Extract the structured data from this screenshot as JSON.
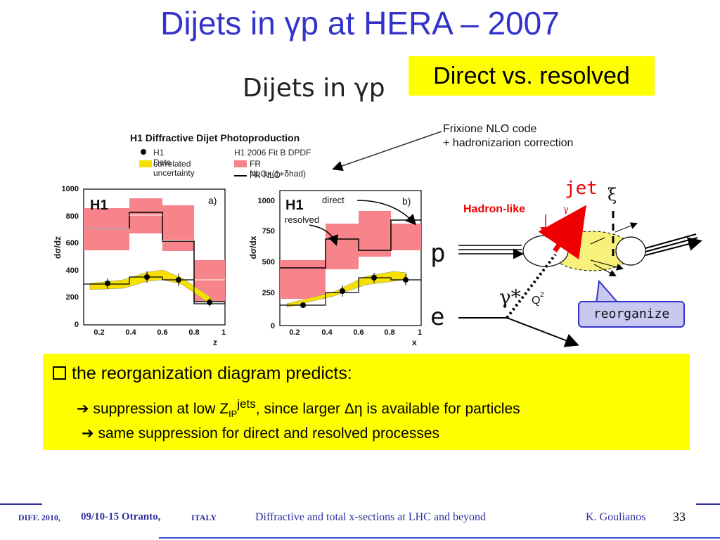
{
  "slide": {
    "title": "Dijets in γp at HERA – 2007",
    "highlight": "Direct vs. resolved"
  },
  "figure": {
    "heading": "Dijets in γp",
    "caption": "H1 Diffractive Dijet Photoproduction",
    "legend": {
      "data": "H1 Data",
      "corr1": "correlated",
      "corr2": "uncertainty",
      "fit": "H1 2006 Fit B DPDF",
      "nlo_corr": "FR NLO×(1+δhad)",
      "nlo": "FR NLO"
    },
    "annotation_line1": "Frixione NLO code",
    "annotation_line2": "+ hadronizarion correction",
    "panel_a": {
      "label": "H1",
      "tag": "a)",
      "ylabel": "dσ/dz",
      "xlabel": "z",
      "y_ticks": [
        "0",
        "200",
        "400",
        "600",
        "800",
        "1000"
      ],
      "x_ticks": [
        "0.2",
        "0.4",
        "0.6",
        "0.8",
        "1"
      ]
    },
    "panel_b": {
      "label": "H1",
      "tag": "b)",
      "direct": "direct",
      "resolved": "resolved",
      "ylabel": "dσ/dx",
      "xlabel": "x",
      "y_ticks": [
        "0",
        "250",
        "500",
        "750",
        "1000"
      ],
      "x_ticks": [
        "0.2",
        "0.4",
        "0.6",
        "0.8",
        "1"
      ]
    }
  },
  "diagram": {
    "jet": "jet",
    "xi": "ξ",
    "hadron_like": "Hadron-like",
    "gamma": "γ",
    "p": "p",
    "e": "e",
    "gamma_star": "γ*",
    "q2": "Q",
    "reorganize": "reorganize"
  },
  "bullets": {
    "main": "the reorganization diagram predicts:",
    "b1_pre": "suppression at low Z",
    "b1_sub": "IP",
    "b1_sup": "jets",
    "b1_post": ", since larger Δη is available for particles",
    "b2": "same suppression for direct and resolved processes"
  },
  "footer": {
    "conf": "DIFF. 2010,",
    "dates": "09/10-15 Otranto,",
    "country": "ITALY",
    "talk": "Diffractive and total x-sections at LHC and beyond",
    "author": "K. Goulianos",
    "page": "33"
  }
}
